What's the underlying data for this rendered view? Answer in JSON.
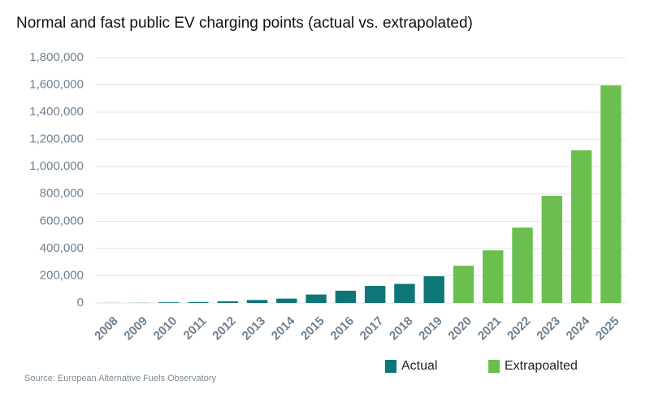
{
  "chart_data": {
    "type": "bar",
    "title": "Normal and fast public EV charging points (actual vs. extrapolated)",
    "source": "Source: European Alternative Fuels Observatory",
    "categories": [
      "2008",
      "2009",
      "2010",
      "2011",
      "2012",
      "2013",
      "2014",
      "2015",
      "2016",
      "2017",
      "2018",
      "2019",
      "2020",
      "2021",
      "2022",
      "2023",
      "2024",
      "2025"
    ],
    "series": [
      {
        "name": "Actual",
        "color": "#0f7677",
        "values": [
          500,
          1000,
          5000,
          7000,
          12000,
          22000,
          32000,
          62000,
          90000,
          125000,
          140000,
          196000,
          null,
          null,
          null,
          null,
          null,
          null
        ]
      },
      {
        "name": "Extrapoalted",
        "color": "#6bbf4e",
        "values": [
          null,
          null,
          null,
          null,
          null,
          null,
          null,
          null,
          null,
          null,
          null,
          null,
          273000,
          386000,
          553000,
          786000,
          1120000,
          1596000
        ]
      }
    ],
    "ylim": [
      0,
      1800000
    ],
    "yticks": [
      0,
      {
        "value": 200000,
        "label": "200,000"
      },
      {
        "value": 400000,
        "label": "400,000"
      },
      {
        "value": 600000,
        "label": "600,000"
      },
      {
        "value": 800000,
        "label": "800,000"
      },
      {
        "value": 1000000,
        "label": "1,000,000"
      },
      {
        "value": 1200000,
        "label": "1,200,000"
      },
      {
        "value": 1400000,
        "label": "1,400,000"
      },
      {
        "value": 1600000,
        "label": "1,600,000"
      },
      {
        "value": 1800000,
        "label": "1,800,000"
      }
    ],
    "grid": true,
    "legend": "bottom-right"
  }
}
